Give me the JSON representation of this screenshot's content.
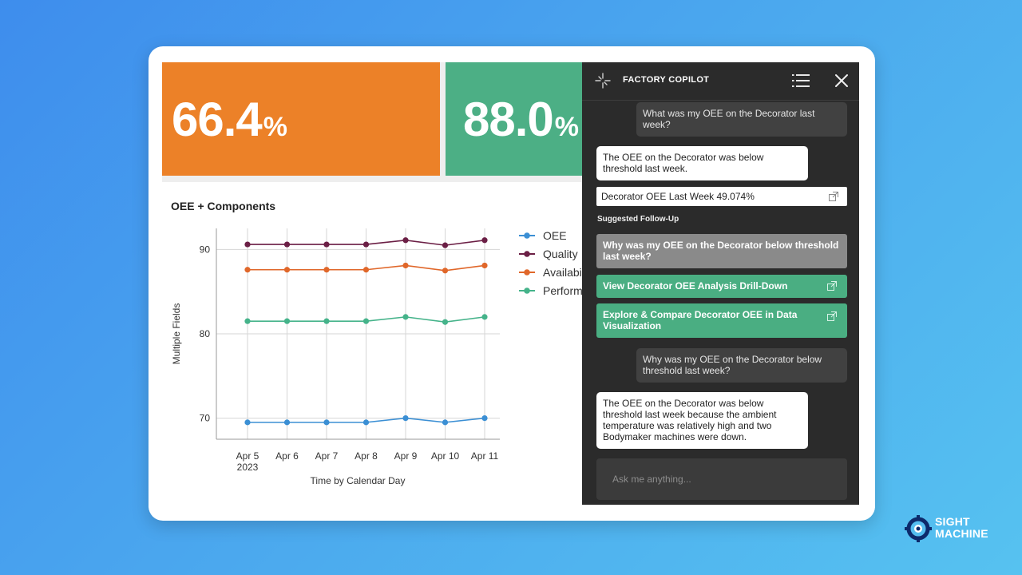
{
  "kpis": [
    {
      "value": "66.4",
      "unit": "%",
      "color": "#ec8128"
    },
    {
      "value": "88.0",
      "unit": "%",
      "color": "#4caf85"
    }
  ],
  "chart_data": {
    "type": "line",
    "title": "OEE + Components",
    "xlabel": "Time by Calendar Day",
    "ylabel": "Multiple Fields",
    "categories": [
      "Apr 5",
      "Apr 6",
      "Apr 7",
      "Apr 8",
      "Apr 9",
      "Apr 10",
      "Apr 11"
    ],
    "year_label": "2023",
    "yticks": [
      70,
      80,
      90
    ],
    "ylim": [
      67.5,
      92.5
    ],
    "grid": true,
    "legend_position": "right",
    "series": [
      {
        "name": "OEE",
        "color": "#3b8fd4",
        "values": [
          69.5,
          69.5,
          69.5,
          69.5,
          70.0,
          69.5,
          70.0
        ]
      },
      {
        "name": "Quality",
        "color": "#6b1f45",
        "values": [
          90.6,
          90.6,
          90.6,
          90.6,
          91.1,
          90.5,
          91.1
        ]
      },
      {
        "name": "Availabi",
        "color": "#e0672a",
        "values": [
          87.6,
          87.6,
          87.6,
          87.6,
          88.1,
          87.5,
          88.1
        ]
      },
      {
        "name": "Perform",
        "color": "#45b38a",
        "values": [
          81.5,
          81.5,
          81.5,
          81.5,
          82.0,
          81.4,
          82.0
        ]
      }
    ]
  },
  "copilot": {
    "title": "FACTORY COPILOT",
    "messages": {
      "user1": "What was my OEE on the Decorator last week?",
      "bot1": "The OEE on the Decorator was below threshold last week.",
      "result": "Decorator OEE Last Week 49.074%",
      "followup_label": "Suggested Follow-Up",
      "followups": [
        "Why was my OEE on the Decorator below threshold last week?",
        "View Decorator OEE Analysis Drill-Down",
        "Explore & Compare Decorator OEE in Data Visualization"
      ],
      "user2": "Why was my OEE on the Decorator below threshold last week?",
      "bot2": "The OEE on the Decorator was below threshold last week because the ambient temperature was relatively high and two Bodymaker machines were down."
    },
    "input_placeholder": "Ask me anything..."
  },
  "brand": {
    "line1": "SIGHT",
    "line2": "MACHINE"
  }
}
